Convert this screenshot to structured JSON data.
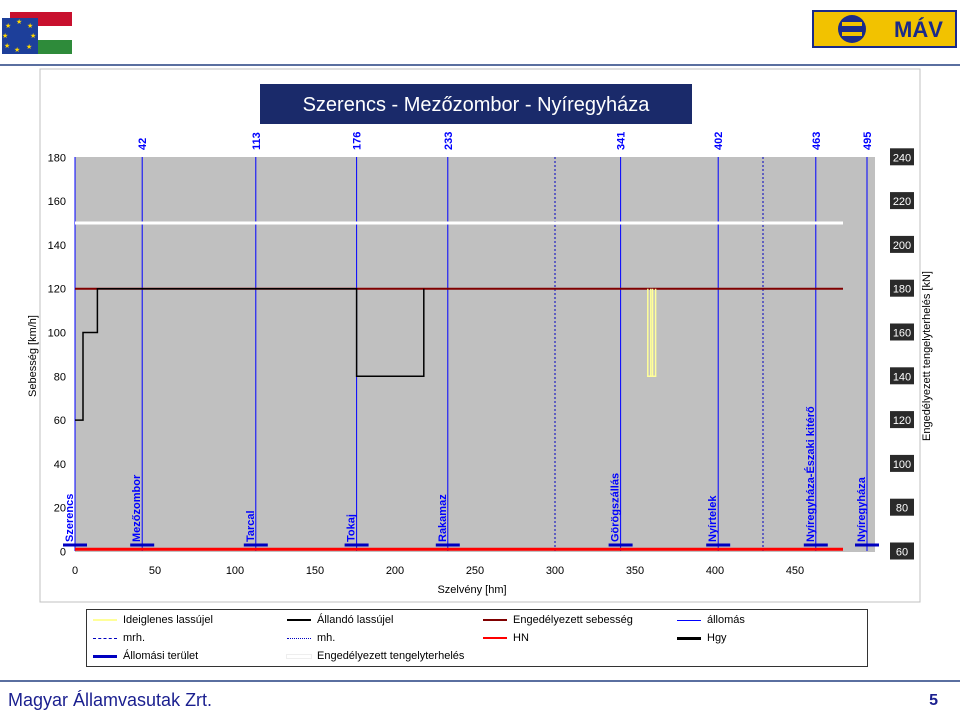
{
  "footer": {
    "company": "Magyar Államvasutak Zrt.",
    "page_number": "5"
  },
  "logo": {
    "mav_text": "MÁV"
  },
  "colors": {
    "plot_bg": "#c0c0c0",
    "station_line": "#0000ff",
    "permitted_speed": "#800000",
    "permanent_restriction": "#000000",
    "temporary_restriction": "#ffff99",
    "permitted_load": "#ffffff",
    "hn": "#ff0000",
    "station_area": "#0000c0",
    "title_bg": "#1a2a6a"
  },
  "chart_data": {
    "type": "line",
    "title": "Szerencs - Mezőzombor - Nyíregyháza",
    "xlabel": "Szelvény [hm]",
    "ylabel": "Sebesség [km/h]",
    "y2label": "Engedélyezett tengelyterhelés [kN]",
    "xlim": [
      0,
      495
    ],
    "ylim": [
      0,
      180
    ],
    "y2lim": [
      60,
      240
    ],
    "x_ticks": [
      "0",
      "50",
      "100",
      "150",
      "200",
      "250",
      "300",
      "350",
      "400",
      "450"
    ],
    "y_ticks": [
      "0",
      "20",
      "40",
      "60",
      "80",
      "100",
      "120",
      "140",
      "160",
      "180"
    ],
    "y2_ticks": [
      "60",
      "80",
      "100",
      "120",
      "140",
      "160",
      "180",
      "200",
      "220",
      "240"
    ],
    "grid": false,
    "stations": [
      {
        "name": "Szerencs",
        "km": 0
      },
      {
        "name": "Mezőzombor",
        "km": 42
      },
      {
        "name": "Tarcal",
        "km": 113
      },
      {
        "name": "Tokaj",
        "km": 176
      },
      {
        "name": "Rakamaz",
        "km": 233
      },
      {
        "name": "Görögszállás",
        "km": 341
      },
      {
        "name": "Nyírtelek",
        "km": 402
      },
      {
        "name": "Nyíregyháza-Északi kitérő",
        "km": 463
      },
      {
        "name": "Nyíregyháza",
        "km": 495
      }
    ],
    "station_km_labels": [
      "42",
      "113",
      "176",
      "233",
      "341",
      "402",
      "463",
      "495"
    ],
    "mh_lines_km": [
      300,
      430
    ],
    "series": [
      {
        "name": "Engedélyezett sebesség",
        "axis": "y",
        "points": [
          [
            0,
            120
          ],
          [
            480,
            120
          ]
        ]
      },
      {
        "name": "Állandó lassújel",
        "axis": "y",
        "points": [
          [
            0,
            60
          ],
          [
            5,
            60
          ],
          [
            5,
            100
          ],
          [
            14,
            100
          ],
          [
            14,
            120
          ],
          [
            176,
            120
          ],
          [
            176,
            80
          ],
          [
            218,
            80
          ],
          [
            218,
            120
          ]
        ]
      },
      {
        "name": "Ideiglenes lassújel",
        "axis": "y",
        "points": [
          [
            358,
            120
          ],
          [
            358,
            80
          ],
          [
            361,
            80
          ],
          [
            361,
            120
          ]
        ]
      },
      {
        "name": "Engedélyezett tengelyterhelés",
        "axis": "y2",
        "points": [
          [
            0,
            210
          ],
          [
            480,
            210
          ]
        ]
      },
      {
        "name": "HN",
        "axis": "y",
        "points": [
          [
            0,
            1
          ],
          [
            480,
            1
          ]
        ]
      }
    ]
  },
  "legend": {
    "items": [
      {
        "label": "Ideiglenes lassújel"
      },
      {
        "label": "Állandó lassújel"
      },
      {
        "label": "Engedélyezett sebesség"
      },
      {
        "label": "állomás"
      },
      {
        "label": "mrh."
      },
      {
        "label": "mh."
      },
      {
        "label": "HN"
      },
      {
        "label": "Hgy"
      },
      {
        "label": "Állomási terület"
      },
      {
        "label": "Engedélyezett tengelyterhelés"
      }
    ]
  }
}
